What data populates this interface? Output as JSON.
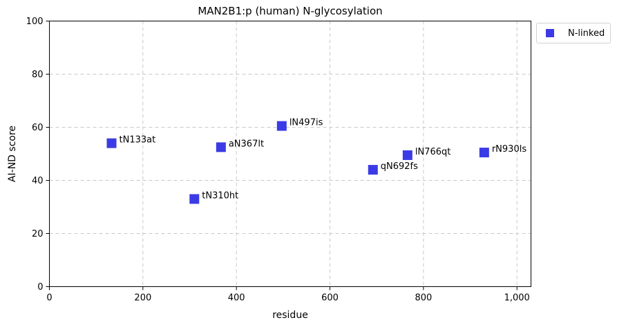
{
  "chart_data": {
    "type": "scatter",
    "title": "MAN2B1:p (human) N-glycosylation",
    "xlabel": "residue",
    "ylabel": "AI-ND score",
    "xlim": [
      0,
      1030
    ],
    "ylim": [
      0,
      100
    ],
    "xticks": [
      0,
      200,
      400,
      600,
      800,
      1000
    ],
    "xtick_labels": [
      "0",
      "200",
      "400",
      "600",
      "800",
      "1,000"
    ],
    "yticks": [
      0,
      20,
      40,
      60,
      80,
      100
    ],
    "ytick_labels": [
      "0",
      "20",
      "40",
      "60",
      "80",
      "100"
    ],
    "grid": true,
    "legend_position": "outside-top-right",
    "series": [
      {
        "name": "N-linked",
        "color": "#3b3be6",
        "marker": "square",
        "points": [
          {
            "x": 133,
            "y": 54,
            "label": "tN133at"
          },
          {
            "x": 310,
            "y": 33,
            "label": "tN310ht"
          },
          {
            "x": 367,
            "y": 52.5,
            "label": "aN367lt"
          },
          {
            "x": 497,
            "y": 60.5,
            "label": "lN497is"
          },
          {
            "x": 692,
            "y": 44,
            "label": "qN692fs"
          },
          {
            "x": 766,
            "y": 49.5,
            "label": "lN766qt"
          },
          {
            "x": 930,
            "y": 50.5,
            "label": "rN930ls"
          }
        ]
      }
    ]
  }
}
